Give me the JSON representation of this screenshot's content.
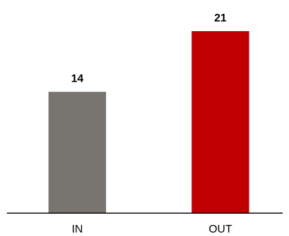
{
  "chart_data": {
    "type": "bar",
    "title": "",
    "xlabel": "",
    "ylabel": "",
    "categories": [
      "IN",
      "OUT"
    ],
    "values": [
      14,
      21
    ],
    "bar_colors": [
      "#787470",
      "#c00000"
    ],
    "ylim": [
      0,
      21
    ],
    "grid": false,
    "data_labels": true,
    "axis_color": "#000000"
  }
}
